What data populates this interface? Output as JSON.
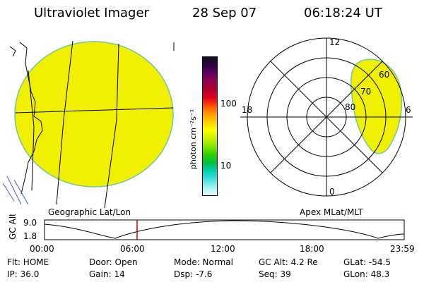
{
  "header": {
    "title": "Ultraviolet Imager",
    "date": "28 Sep 07",
    "time": "06:18:24 UT"
  },
  "colorbar": {
    "unit_label": "photon cm⁻²s⁻¹",
    "ticks": [
      "100",
      "10"
    ],
    "colors_top_to_bottom": [
      "#101020",
      "#300040",
      "#600060",
      "#900050",
      "#b00030",
      "#e00020",
      "#ff5000",
      "#ff9a00",
      "#ffd000",
      "#ffff00",
      "#c8f000",
      "#80e800",
      "#30d000",
      "#00c040",
      "#00d0b0",
      "#40e0e0",
      "#a0f0f0",
      "#e8ffff"
    ]
  },
  "left_panel": {
    "caption": "Geographic Lat/Lon",
    "fill_color": "#f0f000"
  },
  "right_panel": {
    "caption": "Apex MLat/MLT",
    "labels": {
      "top": "12",
      "bottom": "0",
      "left": "18",
      "right": "6",
      "ring60": "60",
      "ring70": "70",
      "ring80": "80"
    },
    "fill_color": "#f0f000"
  },
  "orbit": {
    "ylabel": "GC Alt",
    "yticks": [
      "9.0",
      "1.8"
    ],
    "xticks": [
      "00:00",
      "06:00",
      "12:00",
      "18:00",
      "23:59"
    ],
    "marker_time": "06:18"
  },
  "info": {
    "flt": "Flt: HOME",
    "ip": "IP: 36.0",
    "door": "Door: Open",
    "gain": "Gain: 14",
    "mode": "Mode: Normal",
    "dsp": "Dsp:    -7.6",
    "gcalt": "GC Alt: 4.2 Re",
    "seq": "Seq: 39",
    "glat": "GLat:  -54.5",
    "glon": "GLon:  48.3"
  }
}
